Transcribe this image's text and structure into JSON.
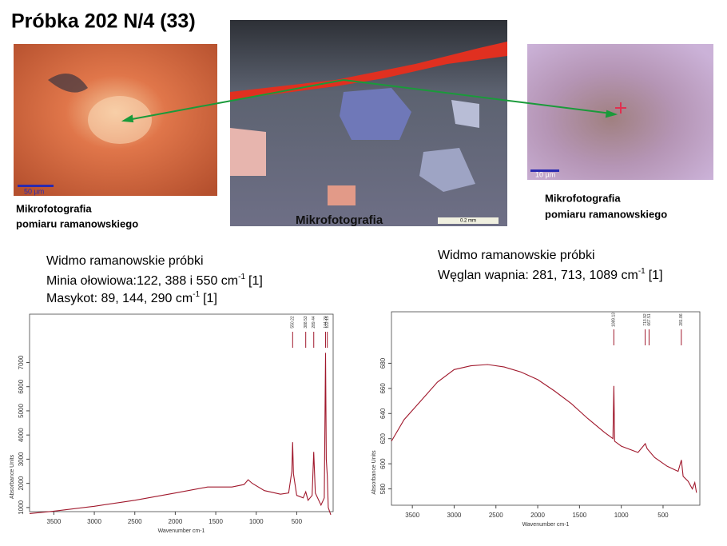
{
  "title": "Próbka 202 N/4 (33)",
  "photos": {
    "left": {
      "scale": "50 µm",
      "caption": [
        "Mikrofotografia",
        "pomiaru ramanowskiego"
      ]
    },
    "center": {
      "scale": "0.2 mm",
      "caption": "Mikrofotografia"
    },
    "right": {
      "scale": "10 µm",
      "caption": [
        "Mikrofotografia",
        "pomiaru ramanowskiego"
      ]
    }
  },
  "descriptions": [
    {
      "heading": "Widmo ramanowskie próbki",
      "lines": [
        {
          "text": "Minia ołowiowa:122, 388 i 550 cm",
          "sup": "-1",
          "ref": "[1]"
        },
        {
          "text": "Masykot: 89, 144, 290 cm",
          "sup": "-1",
          "ref": "[1]"
        }
      ]
    },
    {
      "heading": "Widmo ramanowskie próbki",
      "lines": [
        {
          "text": "Węglan wapnia: 281, 713, 1089 cm",
          "sup": "-1",
          "ref": "[1]"
        }
      ]
    }
  ],
  "chart_data": [
    {
      "type": "line",
      "x_label": "Wavenumber cm-1",
      "y_label": "Absorbance Units",
      "color": "#a0182c",
      "xlim": [
        3800,
        50
      ],
      "xticks": [
        3500,
        3000,
        2500,
        2000,
        1500,
        1000,
        500
      ],
      "ylim": [
        830,
        9000
      ],
      "yticks": [
        1000,
        2000,
        3000,
        4000,
        5000,
        6000,
        7000
      ],
      "x": [
        3800,
        3500,
        3000,
        2500,
        2000,
        1600,
        1300,
        1150,
        1100,
        1050,
        900,
        700,
        600,
        560,
        550,
        540,
        500,
        420,
        388,
        360,
        310,
        290,
        270,
        200,
        160,
        144,
        135,
        122,
        110,
        80
      ],
      "values": [
        750,
        850,
        1050,
        1300,
        1600,
        1850,
        1850,
        1950,
        2150,
        2000,
        1700,
        1550,
        1600,
        2500,
        3700,
        2400,
        1500,
        1400,
        1650,
        1300,
        1500,
        3300,
        1600,
        1100,
        1400,
        7400,
        3000,
        2300,
        1000,
        700
      ],
      "peaks": [
        {
          "value": 550.22,
          "label": "550.22"
        },
        {
          "value": 388.53,
          "label": "388.53"
        },
        {
          "value": 289.44,
          "label": "289.44"
        },
        {
          "value": 144.2,
          "label": "144.20"
        },
        {
          "value": 122.15,
          "label": "122.15"
        }
      ]
    },
    {
      "type": "line",
      "x_label": "Wavenumber cm-1",
      "y_label": "Absorbance Units",
      "color": "#a0182c",
      "xlim": [
        3750,
        60
      ],
      "xticks": [
        3500,
        3000,
        2500,
        2000,
        1500,
        1000,
        500
      ],
      "ylim": [
        567,
        721
      ],
      "yticks": [
        580,
        600,
        620,
        640,
        660,
        680
      ],
      "x": [
        3750,
        3600,
        3400,
        3200,
        3000,
        2800,
        2600,
        2400,
        2200,
        2000,
        1800,
        1600,
        1400,
        1200,
        1100,
        1089,
        1080,
        1000,
        800,
        713,
        690,
        600,
        450,
        320,
        281,
        260,
        200,
        150,
        120,
        100
      ],
      "values": [
        618,
        635,
        650,
        665,
        675,
        678,
        679,
        677,
        673,
        667,
        658,
        648,
        636,
        625,
        620,
        662,
        618,
        614,
        609,
        616,
        612,
        605,
        598,
        594,
        603,
        590,
        586,
        580,
        585,
        577
      ],
      "peaks": [
        {
          "value": 1089.13,
          "label": "1089.13"
        },
        {
          "value": 713.92,
          "label": "713.92"
        },
        {
          "value": 667.51,
          "label": "667.51"
        },
        {
          "value": 281.86,
          "label": "281.86"
        }
      ]
    }
  ]
}
